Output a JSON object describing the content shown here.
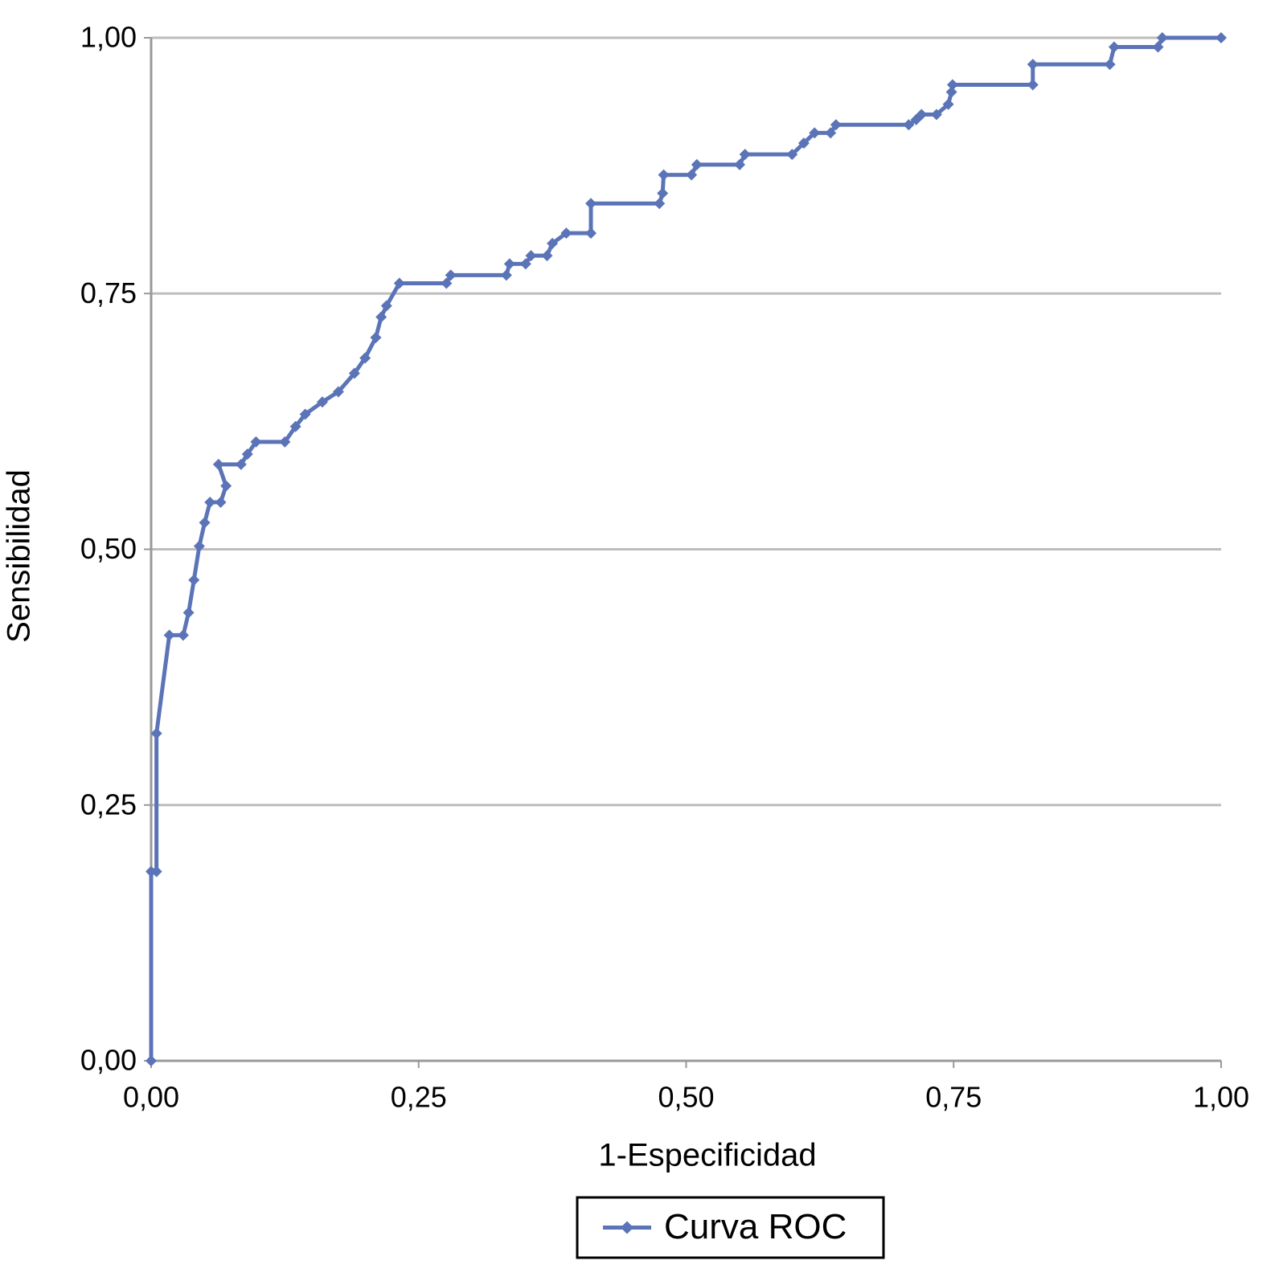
{
  "chart_data": {
    "type": "line",
    "xlabel": "1-Especificidad",
    "ylabel": "Sensibilidad",
    "x": [
      0,
      0,
      0.005,
      0.005,
      0.017,
      0.03,
      0.035,
      0.04,
      0.045,
      0.05,
      0.055,
      0.065,
      0.07,
      0.063,
      0.084,
      0.09,
      0.098,
      0.125,
      0.135,
      0.144,
      0.16,
      0.175,
      0.19,
      0.2,
      0.21,
      0.215,
      0.22,
      0.232,
      0.276,
      0.28,
      0.332,
      0.335,
      0.35,
      0.355,
      0.37,
      0.375,
      0.388,
      0.411,
      0.411,
      0.475,
      0.478,
      0.479,
      0.505,
      0.51,
      0.55,
      0.555,
      0.599,
      0.61,
      0.62,
      0.635,
      0.64,
      0.708,
      0.715,
      0.72,
      0.734,
      0.745,
      0.748,
      0.749,
      0.824,
      0.824,
      0.896,
      0.9,
      0.941,
      0.945,
      1.0
    ],
    "series": [
      {
        "name": "Curva ROC",
        "color": "#5b74b8",
        "values": [
          0,
          0.185,
          0.185,
          0.32,
          0.416,
          0.416,
          0.438,
          0.47,
          0.503,
          0.526,
          0.546,
          0.546,
          0.562,
          0.583,
          0.583,
          0.593,
          0.605,
          0.605,
          0.62,
          0.632,
          0.644,
          0.654,
          0.672,
          0.687,
          0.707,
          0.727,
          0.738,
          0.76,
          0.76,
          0.768,
          0.768,
          0.779,
          0.779,
          0.787,
          0.787,
          0.799,
          0.809,
          0.809,
          0.838,
          0.838,
          0.848,
          0.866,
          0.866,
          0.876,
          0.876,
          0.886,
          0.886,
          0.897,
          0.907,
          0.907,
          0.915,
          0.915,
          0.92,
          0.925,
          0.925,
          0.935,
          0.947,
          0.954,
          0.954,
          0.974,
          0.974,
          0.991,
          0.991,
          1.0,
          1.0
        ]
      }
    ],
    "xlim": [
      0,
      1
    ],
    "ylim": [
      0,
      1
    ],
    "xticks": [
      {
        "value": 0,
        "label": "0,00"
      },
      {
        "value": 0.25,
        "label": "0,25"
      },
      {
        "value": 0.5,
        "label": "0,50"
      },
      {
        "value": 0.75,
        "label": "0,75"
      },
      {
        "value": 1,
        "label": "1,00"
      }
    ],
    "yticks": [
      {
        "value": 0,
        "label": "0,00"
      },
      {
        "value": 0.25,
        "label": "0,25"
      },
      {
        "value": 0.5,
        "label": "0,50"
      },
      {
        "value": 0.75,
        "label": "0,75"
      },
      {
        "value": 1,
        "label": "1,00"
      }
    ],
    "grid": true,
    "legend": "bottom"
  }
}
